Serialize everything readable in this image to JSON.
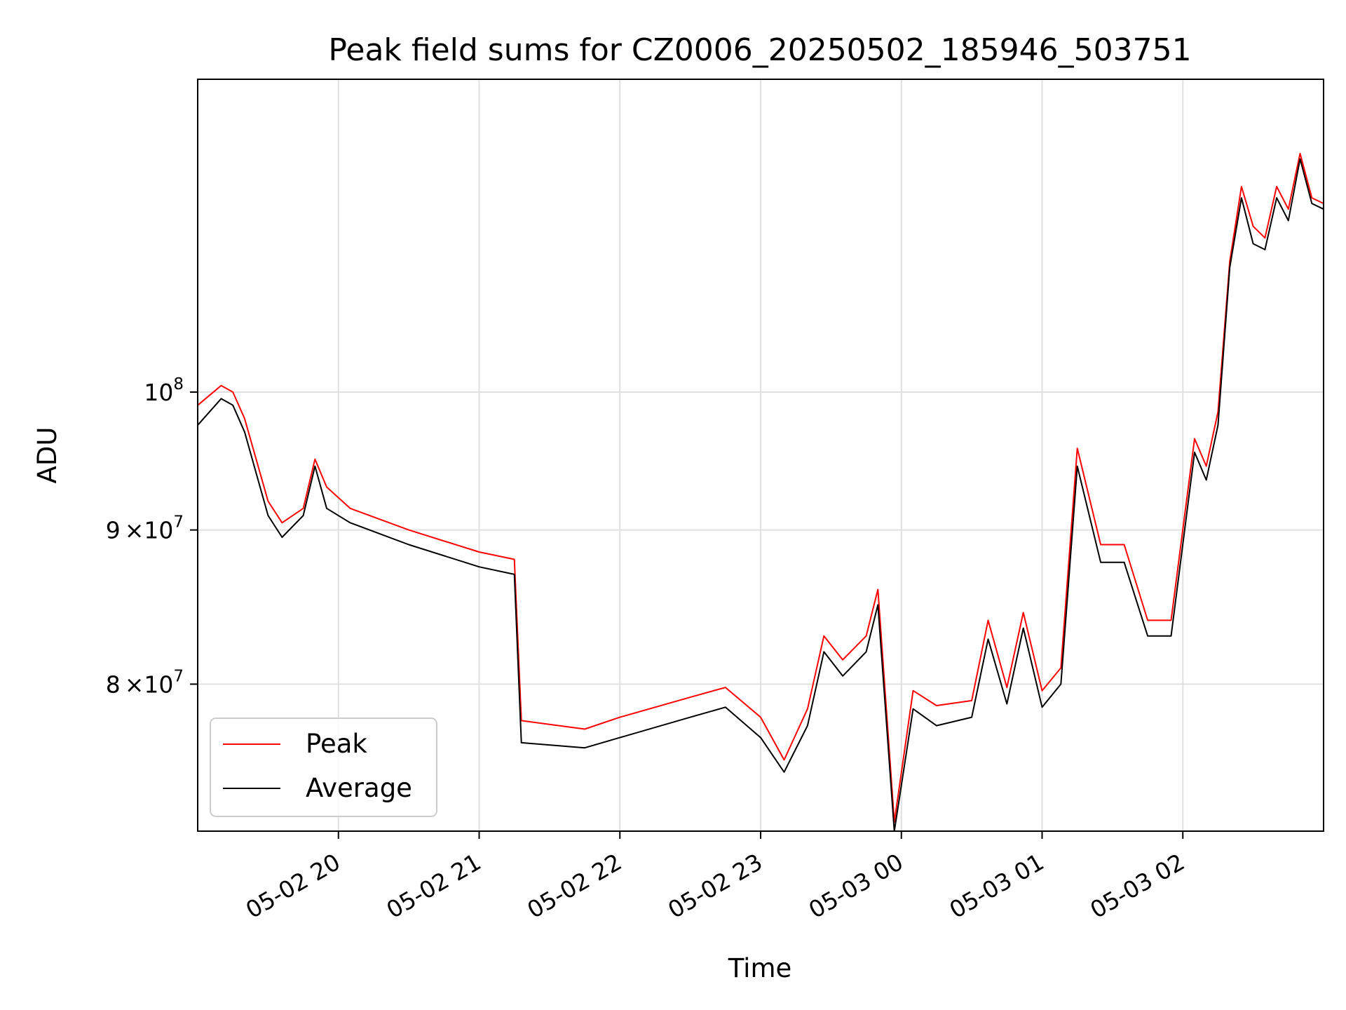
{
  "chart_data": {
    "type": "line",
    "title": "Peak field sums for CZ0006_20250502_185946_503751",
    "xlabel": "Time",
    "ylabel": "ADU",
    "y_scale": "log",
    "ylim": [
      71500000,
      127000000
    ],
    "xlim": [
      "2025-05-02 19:00",
      "2025-05-03 03:00"
    ],
    "grid": true,
    "legend_position": "lower-left",
    "x_ticks": [
      "2025-05-02 20:00",
      "2025-05-02 21:00",
      "2025-05-02 22:00",
      "2025-05-02 23:00",
      "2025-05-03 00:00",
      "2025-05-03 01:00",
      "2025-05-03 02:00"
    ],
    "x_tick_labels": [
      "05-02 20",
      "05-02 21",
      "05-02 22",
      "05-02 23",
      "05-03 00",
      "05-03 01",
      "05-03 02"
    ],
    "y_ticks": [
      80000000,
      90000000,
      100000000
    ],
    "y_tick_labels": [
      {
        "mantissa": "8",
        "times": "×10",
        "exponent": "7"
      },
      {
        "mantissa": "9",
        "times": "×10",
        "exponent": "7"
      },
      {
        "mantissa": "",
        "times": "10",
        "exponent": "8"
      }
    ],
    "series": [
      {
        "name": "Peak",
        "color": "#ff0000",
        "x": [
          "2025-05-02 19:00",
          "2025-05-02 19:10",
          "2025-05-02 19:15",
          "2025-05-02 19:20",
          "2025-05-02 19:30",
          "2025-05-02 19:36",
          "2025-05-02 19:45",
          "2025-05-02 19:50",
          "2025-05-02 19:55",
          "2025-05-02 20:05",
          "2025-05-02 20:30",
          "2025-05-02 21:00",
          "2025-05-02 21:15",
          "2025-05-02 21:18",
          "2025-05-02 21:45",
          "2025-05-02 22:00",
          "2025-05-02 22:30",
          "2025-05-02 22:45",
          "2025-05-02 23:00",
          "2025-05-02 23:10",
          "2025-05-02 23:20",
          "2025-05-02 23:27",
          "2025-05-02 23:35",
          "2025-05-02 23:45",
          "2025-05-02 23:50",
          "2025-05-02 23:57",
          "2025-05-03 00:05",
          "2025-05-03 00:15",
          "2025-05-03 00:30",
          "2025-05-03 00:37",
          "2025-05-03 00:45",
          "2025-05-03 00:52",
          "2025-05-03 01:00",
          "2025-05-03 01:08",
          "2025-05-03 01:15",
          "2025-05-03 01:25",
          "2025-05-03 01:35",
          "2025-05-03 01:45",
          "2025-05-03 01:55",
          "2025-05-03 02:05",
          "2025-05-03 02:10",
          "2025-05-03 02:15",
          "2025-05-03 02:20",
          "2025-05-03 02:25",
          "2025-05-03 02:30",
          "2025-05-03 02:35",
          "2025-05-03 02:40",
          "2025-05-03 02:45",
          "2025-05-03 02:50",
          "2025-05-03 02:55",
          "2025-05-03 03:00"
        ],
        "values": [
          99000000,
          100500000,
          100000000,
          98000000,
          92000000,
          90500000,
          91500000,
          95000000,
          93000000,
          91500000,
          90000000,
          88500000,
          88000000,
          77800000,
          77300000,
          78000000,
          79200000,
          79800000,
          78000000,
          75500000,
          78500000,
          83000000,
          81500000,
          83000000,
          86000000,
          72000000,
          79600000,
          78700000,
          79000000,
          84000000,
          79800000,
          84500000,
          79600000,
          81000000,
          95800000,
          89000000,
          89000000,
          84000000,
          84000000,
          96500000,
          94500000,
          98500000,
          110500000,
          117000000,
          113500000,
          112500000,
          117000000,
          115000000,
          120000000,
          116000000,
          115500000
        ]
      },
      {
        "name": "Average",
        "color": "#000000",
        "x": [
          "2025-05-02 19:00",
          "2025-05-02 19:10",
          "2025-05-02 19:15",
          "2025-05-02 19:20",
          "2025-05-02 19:30",
          "2025-05-02 19:36",
          "2025-05-02 19:45",
          "2025-05-02 19:50",
          "2025-05-02 19:55",
          "2025-05-02 20:05",
          "2025-05-02 20:30",
          "2025-05-02 21:00",
          "2025-05-02 21:15",
          "2025-05-02 21:18",
          "2025-05-02 21:45",
          "2025-05-02 22:00",
          "2025-05-02 22:30",
          "2025-05-02 22:45",
          "2025-05-02 23:00",
          "2025-05-02 23:10",
          "2025-05-02 23:20",
          "2025-05-02 23:27",
          "2025-05-02 23:35",
          "2025-05-02 23:45",
          "2025-05-02 23:50",
          "2025-05-02 23:57",
          "2025-05-03 00:05",
          "2025-05-03 00:15",
          "2025-05-03 00:30",
          "2025-05-03 00:37",
          "2025-05-03 00:45",
          "2025-05-03 00:52",
          "2025-05-03 01:00",
          "2025-05-03 01:08",
          "2025-05-03 01:15",
          "2025-05-03 01:25",
          "2025-05-03 01:35",
          "2025-05-03 01:45",
          "2025-05-03 01:55",
          "2025-05-03 02:05",
          "2025-05-03 02:10",
          "2025-05-03 02:15",
          "2025-05-03 02:20",
          "2025-05-03 02:25",
          "2025-05-03 02:30",
          "2025-05-03 02:35",
          "2025-05-03 02:40",
          "2025-05-03 02:45",
          "2025-05-03 02:50",
          "2025-05-03 02:55",
          "2025-05-03 03:00"
        ],
        "values": [
          97500000,
          99500000,
          99000000,
          97000000,
          91000000,
          89500000,
          91000000,
          94500000,
          91500000,
          90500000,
          89000000,
          87500000,
          87000000,
          76500000,
          76200000,
          76800000,
          78000000,
          78600000,
          76800000,
          74800000,
          77500000,
          82000000,
          80500000,
          82000000,
          85000000,
          71500000,
          78500000,
          77500000,
          78000000,
          82800000,
          78800000,
          83500000,
          78600000,
          80000000,
          94500000,
          87800000,
          87800000,
          83000000,
          83000000,
          95500000,
          93500000,
          97500000,
          110000000,
          116000000,
          112000000,
          111500000,
          116000000,
          114000000,
          119500000,
          115500000,
          115000000
        ]
      }
    ]
  }
}
